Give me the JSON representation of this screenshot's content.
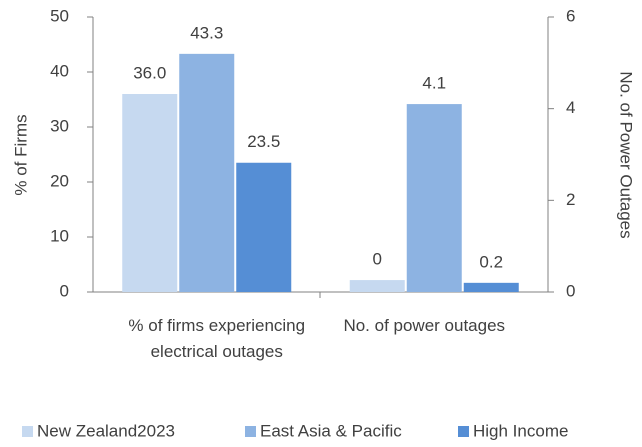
{
  "chart_data": {
    "type": "bar",
    "categories": [
      "% of firms experiencing electrical outages",
      "No. of power outages"
    ],
    "category_axes": [
      "y",
      "y2"
    ],
    "series": [
      {
        "name": "New Zealand2023",
        "color": "#c6d9f0",
        "values": [
          36.0,
          0.26
        ],
        "value_labels": [
          "36.0",
          "0"
        ]
      },
      {
        "name": "East Asia & Pacific",
        "color": "#8db3e2",
        "values": [
          43.3,
          4.1
        ],
        "value_labels": [
          "43.3",
          "4.1"
        ]
      },
      {
        "name": "High Income",
        "color": "#558ed5",
        "values": [
          23.5,
          0.2
        ],
        "value_labels": [
          "23.5",
          "0.2"
        ]
      }
    ],
    "y_label": "% of Firms",
    "y2_label": "No. of Power Outages",
    "ylim": [
      0,
      50
    ],
    "yticks": [
      0,
      10,
      20,
      30,
      40,
      50
    ],
    "y2lim": [
      0,
      6
    ],
    "y2ticks": [
      0,
      2,
      4,
      6
    ],
    "legend": "bottom"
  }
}
